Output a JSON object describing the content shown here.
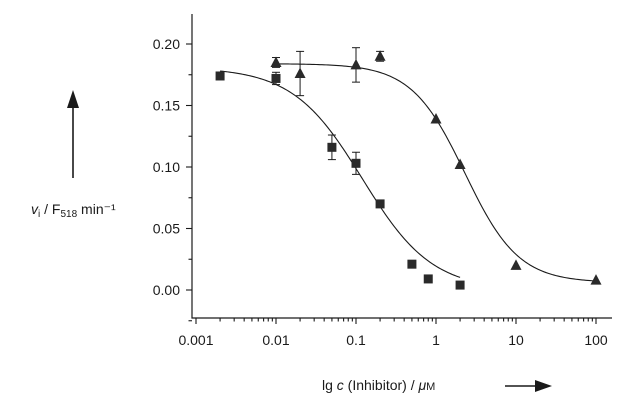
{
  "chart_data": {
    "type": "scatter",
    "xscale": "log",
    "xlim": [
      0.001,
      100
    ],
    "ylim": [
      -0.02,
      0.22
    ],
    "x_ticks": [
      {
        "value": 0.001,
        "label": "0.001"
      },
      {
        "value": 0.01,
        "label": "0.01"
      },
      {
        "value": 0.1,
        "label": "0.1"
      },
      {
        "value": 1,
        "label": "1"
      },
      {
        "value": 10,
        "label": "10"
      },
      {
        "value": 100,
        "label": "100"
      }
    ],
    "y_ticks": [
      {
        "value": 0.0,
        "label": "0.00"
      },
      {
        "value": 0.05,
        "label": "0.05"
      },
      {
        "value": 0.1,
        "label": "0.10"
      },
      {
        "value": 0.15,
        "label": "0.15"
      },
      {
        "value": 0.2,
        "label": "0.20"
      }
    ],
    "ylabel": {
      "v": "v",
      "sub_i": "i",
      "slash_f": " / F",
      "sub_518": "518",
      "unit": " min⁻¹"
    },
    "xlabel": {
      "lg": "lg ",
      "c": "c",
      "rest": " (Inhibitor) / ",
      "mu": "μ",
      "m": "M"
    },
    "grid": false,
    "series": [
      {
        "marker": "square",
        "points": [
          {
            "x": 0.002,
            "y": 0.174
          },
          {
            "x": 0.01,
            "y": 0.172,
            "err": 0.005
          },
          {
            "x": 0.05,
            "y": 0.116,
            "err": 0.01
          },
          {
            "x": 0.1,
            "y": 0.103,
            "err": 0.009
          },
          {
            "x": 0.2,
            "y": 0.07
          },
          {
            "x": 0.5,
            "y": 0.021
          },
          {
            "x": 0.8,
            "y": 0.009
          },
          {
            "x": 2,
            "y": 0.004
          }
        ],
        "fit": {
          "top": 0.181,
          "bottom": 0.0,
          "ic50": 0.12,
          "hill": 1.0
        }
      },
      {
        "marker": "triangle",
        "points": [
          {
            "x": 0.01,
            "y": 0.185,
            "err": 0.004
          },
          {
            "x": 0.02,
            "y": 0.176,
            "err": 0.018
          },
          {
            "x": 0.1,
            "y": 0.183,
            "err": 0.014
          },
          {
            "x": 0.2,
            "y": 0.19,
            "err": 0.004
          },
          {
            "x": 1,
            "y": 0.139
          },
          {
            "x": 2,
            "y": 0.102
          },
          {
            "x": 10,
            "y": 0.02
          },
          {
            "x": 100,
            "y": 0.008
          }
        ],
        "fit": {
          "top": 0.184,
          "bottom": 0.006,
          "ic50": 2.3,
          "hill": 1.3
        }
      }
    ]
  }
}
